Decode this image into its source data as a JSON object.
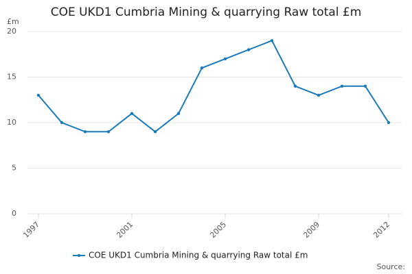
{
  "chart_data": {
    "type": "line",
    "title": "COE UKD1 Cumbria Mining & quarrying Raw total £m",
    "y_label": "£m",
    "source": "Source:",
    "x": [
      1997,
      1998,
      1999,
      2000,
      2001,
      2002,
      2003,
      2004,
      2005,
      2006,
      2007,
      2008,
      2009,
      2010,
      2011,
      2012
    ],
    "series": [
      {
        "name": "COE UKD1 Cumbria Mining & quarrying Raw total £m",
        "color": "#1a7ab8",
        "values": [
          13,
          10,
          9,
          9,
          11,
          9,
          11,
          16,
          17,
          18,
          19,
          14,
          13,
          14,
          14,
          10
        ]
      }
    ],
    "xlim": [
      1997,
      2012
    ],
    "xticks": [
      1997,
      2001,
      2005,
      2009,
      2012
    ],
    "ylim": [
      0,
      20
    ],
    "yticks": [
      0,
      5,
      10,
      15,
      20
    ],
    "grid": true
  }
}
